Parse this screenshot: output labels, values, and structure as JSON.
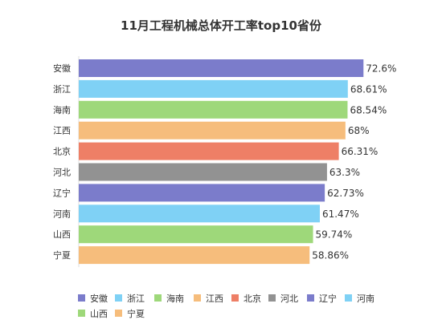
{
  "chart_data": {
    "type": "bar",
    "orientation": "horizontal",
    "title": "11月工程机械总体开工率top10省份",
    "xlabel": "",
    "ylabel": "",
    "xlim": [
      0,
      75
    ],
    "grid": false,
    "legend_position": "bottom",
    "categories": [
      "安徽",
      "浙江",
      "海南",
      "江西",
      "北京",
      "河北",
      "辽宁",
      "河南",
      "山西",
      "宁夏"
    ],
    "values": [
      72.6,
      68.61,
      68.54,
      68,
      66.31,
      63.3,
      62.73,
      61.47,
      59.74,
      58.86
    ],
    "value_labels": [
      "72.6%",
      "68.61%",
      "68.54%",
      "68%",
      "66.31%",
      "63.3%",
      "62.73%",
      "61.47%",
      "59.74%",
      "58.86%"
    ],
    "colors": [
      "#7b7ccb",
      "#7fd1f5",
      "#9ed87a",
      "#f6bd7c",
      "#ee7f66",
      "#929292",
      "#7b7ccb",
      "#7fd1f5",
      "#9ed87a",
      "#f6bd7c"
    ]
  }
}
